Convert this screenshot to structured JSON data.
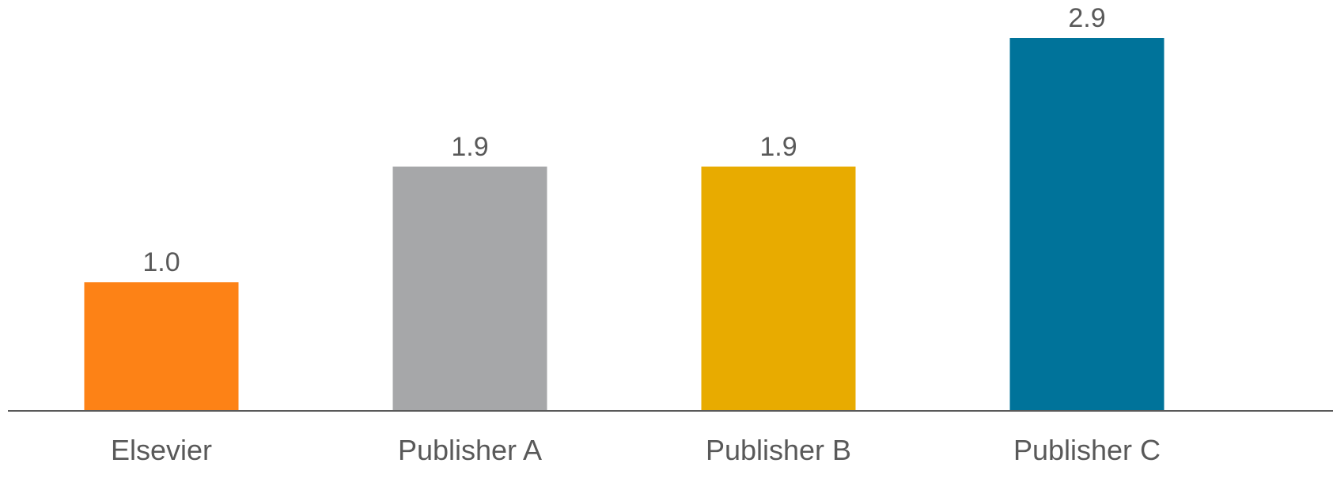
{
  "chart_data": {
    "type": "bar",
    "categories": [
      "Elsevier",
      "Publisher A",
      "Publisher B",
      "Publisher C"
    ],
    "values": [
      1.0,
      1.9,
      1.9,
      2.9
    ],
    "value_labels": [
      "1.0",
      "1.9",
      "1.9",
      "2.9"
    ],
    "bar_colors": [
      "#fd8216",
      "#a6a7a9",
      "#e8ab00",
      "#00739a"
    ],
    "ylim": [
      0,
      2.9
    ],
    "grid": false,
    "legend": "none"
  }
}
